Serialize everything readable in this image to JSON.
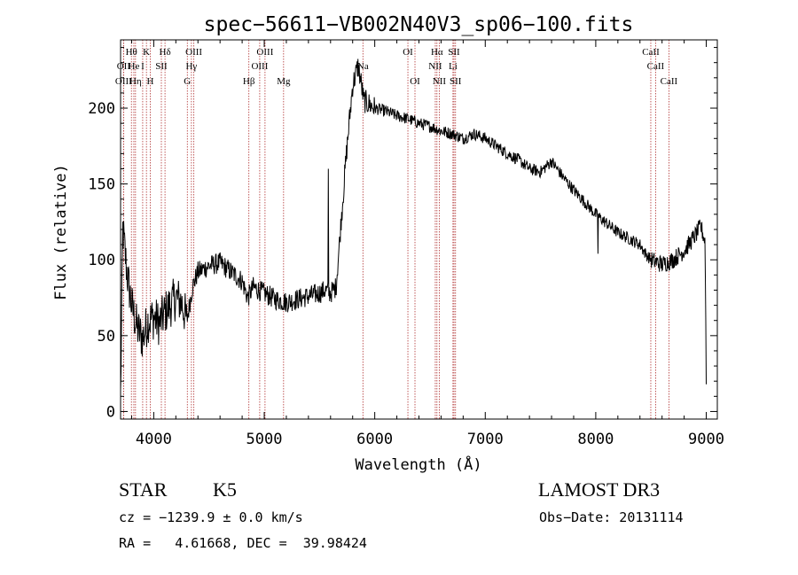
{
  "chart_data": {
    "type": "line",
    "title": "spec−56611−VB002N40V3_sp06−100.fits",
    "xlabel": "Wavelength (Å)",
    "ylabel": "Flux (relative)",
    "xlim": [
      3700,
      9100
    ],
    "ylim": [
      -5,
      245
    ],
    "x_ticks": [
      4000,
      5000,
      6000,
      7000,
      8000,
      9000
    ],
    "y_ticks": [
      0,
      50,
      100,
      150,
      200
    ],
    "line_color": "#000000",
    "marker_color": "#b03030",
    "spectrum_anchors": [
      [
        3700,
        10
      ],
      [
        3720,
        120
      ],
      [
        3760,
        90
      ],
      [
        3800,
        70
      ],
      [
        3850,
        55
      ],
      [
        3900,
        48
      ],
      [
        3950,
        60
      ],
      [
        4000,
        62
      ],
      [
        4050,
        58
      ],
      [
        4100,
        65
      ],
      [
        4150,
        70
      ],
      [
        4200,
        75
      ],
      [
        4250,
        72
      ],
      [
        4300,
        60
      ],
      [
        4350,
        82
      ],
      [
        4400,
        92
      ],
      [
        4500,
        96
      ],
      [
        4600,
        98
      ],
      [
        4700,
        92
      ],
      [
        4800,
        86
      ],
      [
        4850,
        75
      ],
      [
        4900,
        82
      ],
      [
        5000,
        78
      ],
      [
        5100,
        74
      ],
      [
        5200,
        72
      ],
      [
        5300,
        74
      ],
      [
        5400,
        76
      ],
      [
        5500,
        78
      ],
      [
        5550,
        80
      ],
      [
        5600,
        78
      ],
      [
        5650,
        82
      ],
      [
        5700,
        130
      ],
      [
        5750,
        175
      ],
      [
        5800,
        215
      ],
      [
        5850,
        228
      ],
      [
        5880,
        215
      ],
      [
        5900,
        205
      ],
      [
        6000,
        200
      ],
      [
        6100,
        198
      ],
      [
        6200,
        195
      ],
      [
        6300,
        193
      ],
      [
        6400,
        190
      ],
      [
        6500,
        188
      ],
      [
        6600,
        185
      ],
      [
        6700,
        183
      ],
      [
        6800,
        180
      ],
      [
        6900,
        183
      ],
      [
        7000,
        180
      ],
      [
        7100,
        175
      ],
      [
        7200,
        170
      ],
      [
        7300,
        166
      ],
      [
        7400,
        160
      ],
      [
        7500,
        158
      ],
      [
        7600,
        165
      ],
      [
        7700,
        155
      ],
      [
        7800,
        146
      ],
      [
        7900,
        138
      ],
      [
        8000,
        130
      ],
      [
        8100,
        124
      ],
      [
        8200,
        118
      ],
      [
        8300,
        114
      ],
      [
        8400,
        110
      ],
      [
        8450,
        104
      ],
      [
        8500,
        100
      ],
      [
        8600,
        97
      ],
      [
        8700,
        100
      ],
      [
        8800,
        106
      ],
      [
        8900,
        116
      ],
      [
        8950,
        122
      ],
      [
        8990,
        112
      ],
      [
        9000,
        20
      ]
    ],
    "spikes": [
      [
        5580,
        160
      ],
      [
        8020,
        104
      ]
    ],
    "line_markers": [
      {
        "label": "Hθ",
        "x": 3798,
        "row": 1
      },
      {
        "label": "OII",
        "x": 3727,
        "row": 2
      },
      {
        "label": "OIII",
        "x": 3727,
        "row": 3
      },
      {
        "label": "He",
        "x": 3820,
        "row": 2
      },
      {
        "label": "Hη",
        "x": 3835,
        "row": 3
      },
      {
        "label": "K",
        "x": 3934,
        "row": 1
      },
      {
        "label": "I",
        "x": 3900,
        "row": 2
      },
      {
        "label": "SII",
        "x": 4069,
        "row": 2
      },
      {
        "label": "H",
        "x": 3969,
        "row": 3
      },
      {
        "label": "Hδ",
        "x": 4102,
        "row": 1
      },
      {
        "label": "OIII",
        "x": 4363,
        "row": 1
      },
      {
        "label": "Hγ",
        "x": 4341,
        "row": 2
      },
      {
        "label": "G",
        "x": 4304,
        "row": 3
      },
      {
        "label": "Hβ",
        "x": 4861,
        "row": 3
      },
      {
        "label": "OIII",
        "x": 5007,
        "row": 1
      },
      {
        "label": "OIII",
        "x": 4959,
        "row": 2
      },
      {
        "label": "Mg",
        "x": 5175,
        "row": 3
      },
      {
        "label": "Na",
        "x": 5893,
        "row": 2
      },
      {
        "label": "OI",
        "x": 6300,
        "row": 1
      },
      {
        "label": "OI",
        "x": 6364,
        "row": 3
      },
      {
        "label": "Hα",
        "x": 6563,
        "row": 1
      },
      {
        "label": "NII",
        "x": 6548,
        "row": 2
      },
      {
        "label": "NII",
        "x": 6584,
        "row": 3
      },
      {
        "label": "SII",
        "x": 6717,
        "row": 1
      },
      {
        "label": "Li",
        "x": 6708,
        "row": 2
      },
      {
        "label": "SII",
        "x": 6731,
        "row": 3
      },
      {
        "label": "CaII",
        "x": 8498,
        "row": 1
      },
      {
        "label": "CaII",
        "x": 8542,
        "row": 2
      },
      {
        "label": "CaII",
        "x": 8662,
        "row": 3
      }
    ]
  },
  "info": {
    "class_label": "STAR",
    "subclass": "K5",
    "survey": "LAMOST DR3",
    "cz": "cz = −1239.9 ± 0.0 km/s",
    "obs_date": "Obs−Date: 20131114",
    "radec": "RA =   4.61668, DEC =  39.98424"
  }
}
